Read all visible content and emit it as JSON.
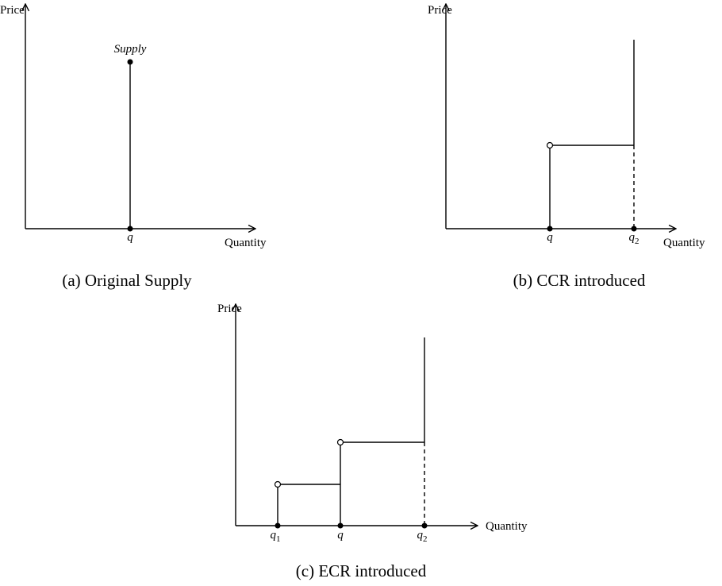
{
  "panels": [
    {
      "y_label": "Price",
      "x_label": "Quantity",
      "curve_label": "Supply",
      "points": [
        {
          "base": "q"
        }
      ],
      "caption": "(a) Original Supply"
    },
    {
      "y_label": "Price",
      "x_label": "Quantity",
      "points": [
        {
          "base": "q"
        },
        {
          "base": "q",
          "sub": "2"
        }
      ],
      "caption": "(b) CCR introduced"
    },
    {
      "y_label": "Price",
      "x_label": "Quantity",
      "points": [
        {
          "base": "q",
          "sub": "1"
        },
        {
          "base": "q"
        },
        {
          "base": "q",
          "sub": "2"
        }
      ],
      "caption": "(c) ECR introduced"
    }
  ]
}
